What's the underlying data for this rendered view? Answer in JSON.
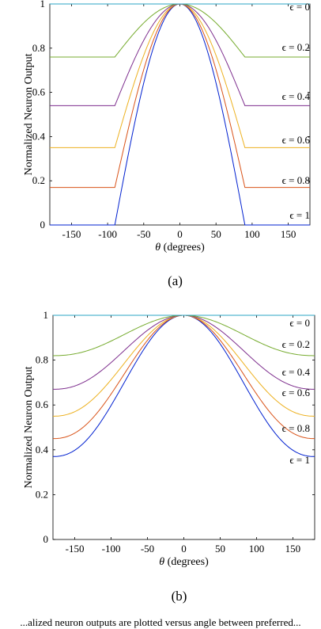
{
  "charts": [
    {
      "caption": "(a)",
      "xlabel_symbol": "θ",
      "xlabel_text": " (degrees)",
      "ylabel": "Normalized Neuron Output",
      "xlim": [
        -180,
        180
      ],
      "ylim": [
        0,
        1
      ],
      "xticks": [
        -150,
        -100,
        -50,
        0,
        50,
        100,
        150
      ],
      "yticks": [
        0,
        0.2,
        0.4,
        0.6,
        0.8,
        1
      ],
      "ytick_labels": [
        "0",
        "0.2",
        "0.4",
        "0.6",
        "0.8",
        "1"
      ],
      "epsilon_labels": [
        "ϵ = 0",
        "ϵ = 0.2",
        "ϵ = 0.4",
        "ϵ = 0.6",
        "ϵ = 0.8",
        "ϵ = 1"
      ]
    },
    {
      "caption": "(b)",
      "xlabel_symbol": "θ",
      "xlabel_text": " (degrees)",
      "ylabel": "Normalized Neuron Output",
      "xlim": [
        -180,
        180
      ],
      "ylim": [
        0,
        1
      ],
      "xticks": [
        -150,
        -100,
        -50,
        0,
        50,
        100,
        150
      ],
      "yticks": [
        0,
        0.2,
        0.4,
        0.6,
        0.8,
        1
      ],
      "ytick_labels": [
        "0",
        "0.2",
        "0.4",
        "0.6",
        "0.8",
        "1"
      ],
      "epsilon_labels": [
        "ϵ = 0",
        "ϵ = 0.2",
        "ϵ = 0.4",
        "ϵ = 0.6",
        "ϵ = 0.8",
        "ϵ = 1"
      ]
    }
  ],
  "chart_data": [
    {
      "type": "line",
      "xlabel": "θ (degrees)",
      "ylabel": "Normalized Neuron Output",
      "xlim": [
        -180,
        180
      ],
      "ylim": [
        0,
        1
      ],
      "grid": false,
      "legend": "inline labels at right edge",
      "x": [
        -180,
        -90,
        -60,
        -30,
        0,
        30,
        60,
        90,
        180
      ],
      "series": [
        {
          "name": "ϵ = 0",
          "color": "#2ba6c4",
          "values": [
            1,
            1,
            1,
            1,
            1,
            1,
            1,
            1,
            1
          ]
        },
        {
          "name": "ϵ = 0.2",
          "color": "#77ac30",
          "values": [
            0.76,
            0.76,
            0.88,
            0.97,
            1,
            0.97,
            0.88,
            0.76,
            0.76
          ]
        },
        {
          "name": "ϵ = 0.4",
          "color": "#7e2f8e",
          "values": [
            0.54,
            0.54,
            0.77,
            0.94,
            1,
            0.94,
            0.77,
            0.54,
            0.54
          ]
        },
        {
          "name": "ϵ = 0.6",
          "color": "#edb120",
          "values": [
            0.35,
            0.35,
            0.67,
            0.91,
            1,
            0.91,
            0.67,
            0.35,
            0.35
          ]
        },
        {
          "name": "ϵ = 0.8",
          "color": "#d95319",
          "values": [
            0.17,
            0.17,
            0.58,
            0.89,
            1,
            0.89,
            0.58,
            0.17,
            0.17
          ]
        },
        {
          "name": "ϵ = 1",
          "color": "#0020d0",
          "values": [
            0,
            0,
            0.5,
            0.87,
            1,
            0.87,
            0.5,
            0,
            0
          ]
        }
      ]
    },
    {
      "type": "line",
      "xlabel": "θ (degrees)",
      "ylabel": "Normalized Neuron Output",
      "xlim": [
        -180,
        180
      ],
      "ylim": [
        0,
        1
      ],
      "grid": false,
      "legend": "inline labels at right edge",
      "x": [
        -180,
        -150,
        -120,
        -90,
        -60,
        -30,
        0,
        30,
        60,
        90,
        120,
        150,
        180
      ],
      "series": [
        {
          "name": "ϵ = 0",
          "color": "#2ba6c4",
          "values": [
            1,
            1,
            1,
            1,
            1,
            1,
            1,
            1,
            1,
            1,
            1,
            1,
            1
          ]
        },
        {
          "name": "ϵ = 0.2",
          "color": "#77ac30",
          "values": [
            0.82,
            0.83,
            0.86,
            0.91,
            0.955,
            0.99,
            1,
            0.99,
            0.955,
            0.91,
            0.86,
            0.83,
            0.82
          ]
        },
        {
          "name": "ϵ = 0.4",
          "color": "#7e2f8e",
          "values": [
            0.67,
            0.68,
            0.74,
            0.83,
            0.915,
            0.975,
            1,
            0.975,
            0.915,
            0.83,
            0.74,
            0.68,
            0.67
          ]
        },
        {
          "name": "ϵ = 0.6",
          "color": "#edb120",
          "values": [
            0.55,
            0.565,
            0.64,
            0.765,
            0.88,
            0.965,
            1,
            0.965,
            0.88,
            0.765,
            0.64,
            0.565,
            0.55
          ]
        },
        {
          "name": "ϵ = 0.8",
          "color": "#d95319",
          "values": [
            0.45,
            0.465,
            0.555,
            0.705,
            0.85,
            0.955,
            1,
            0.955,
            0.85,
            0.705,
            0.555,
            0.465,
            0.45
          ]
        },
        {
          "name": "ϵ = 1",
          "color": "#0020d0",
          "values": [
            0.37,
            0.385,
            0.485,
            0.655,
            0.825,
            0.945,
            1,
            0.945,
            0.825,
            0.655,
            0.485,
            0.385,
            0.37
          ]
        }
      ]
    }
  ],
  "footer_text": "...alized neuron outputs are plotted versus angle between preferred..."
}
